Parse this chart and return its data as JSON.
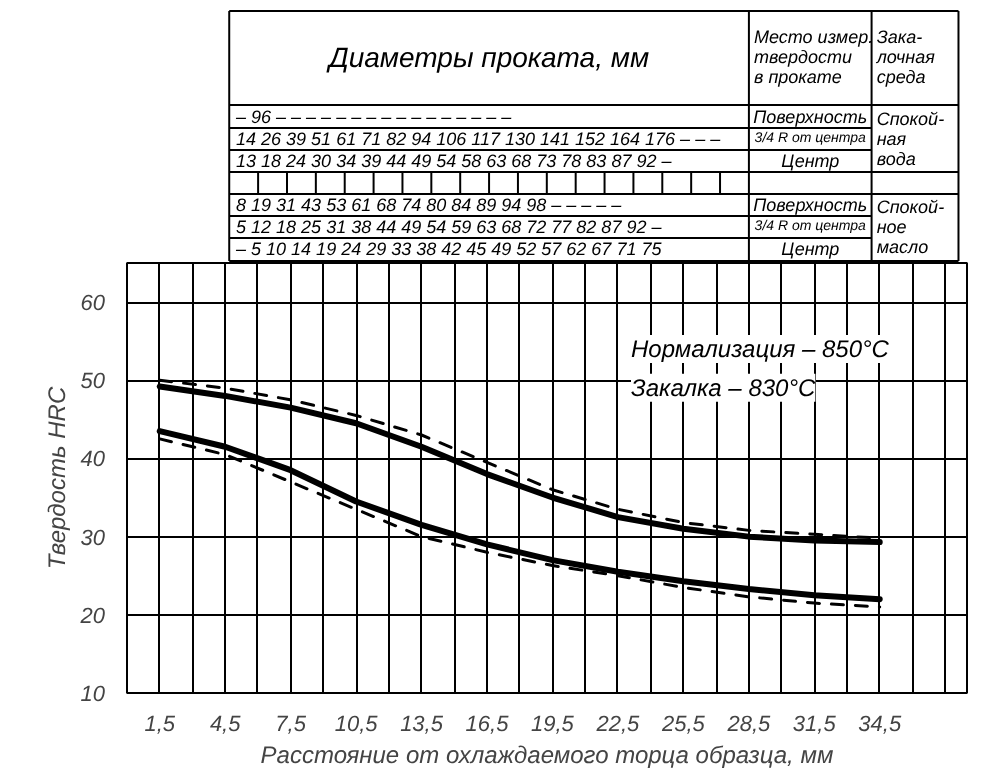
{
  "chart_data": {
    "type": "line",
    "ylabel": "Твердость HRC",
    "xlabel": "Расстояние от охлаждаемого торца образца, мм",
    "x": [
      1.5,
      4.5,
      7.5,
      10.5,
      13.5,
      16.5,
      19.5,
      22.5,
      25.5,
      28.5,
      31.5,
      34.5
    ],
    "series": [
      {
        "color": "#000000",
        "line_style": "solid",
        "values": [
          49.2,
          48,
          46.5,
          44.5,
          41.5,
          38,
          35,
          32.5,
          31,
          30,
          29.5,
          29.3
        ]
      },
      {
        "color": "#000000",
        "line_style": "dashed",
        "values": [
          50,
          49,
          47.5,
          45.5,
          43,
          39.5,
          36,
          33.5,
          31.8,
          30.8,
          30.3,
          29.8
        ]
      },
      {
        "color": "#000000",
        "line_style": "solid",
        "values": [
          43.5,
          41.5,
          38.5,
          34.5,
          31.5,
          29,
          27,
          25.5,
          24.3,
          23.3,
          22.5,
          22
        ]
      },
      {
        "color": "#000000",
        "line_style": "dashed",
        "values": [
          42.5,
          40.5,
          37,
          33.5,
          30,
          28,
          26.3,
          25,
          23.5,
          22.3,
          21.5,
          21
        ]
      }
    ],
    "xlim": [
      0,
      38.5
    ],
    "ylim": [
      10,
      65
    ],
    "xticks": [
      {
        "value": 1.5,
        "label": "1,5"
      },
      {
        "value": 3,
        "label": null
      },
      {
        "value": 4.5,
        "label": "4,5"
      },
      {
        "value": 6,
        "label": null
      },
      {
        "value": 7.5,
        "label": "7,5"
      },
      {
        "value": 9,
        "label": null
      },
      {
        "value": 10.5,
        "label": "10,5"
      },
      {
        "value": 12,
        "label": null
      },
      {
        "value": 13.5,
        "label": "13,5"
      },
      {
        "value": 15,
        "label": null
      },
      {
        "value": 16.5,
        "label": "16,5"
      },
      {
        "value": 18,
        "label": null
      },
      {
        "value": 19.5,
        "label": "19,5"
      },
      {
        "value": 21,
        "label": null
      },
      {
        "value": 22.5,
        "label": "22,5"
      },
      {
        "value": 24,
        "label": null
      },
      {
        "value": 25.5,
        "label": "25,5"
      },
      {
        "value": 27,
        "label": null
      },
      {
        "value": 28.5,
        "label": "28,5"
      },
      {
        "value": 30,
        "label": null
      },
      {
        "value": 31.5,
        "label": "31,5"
      },
      {
        "value": 33,
        "label": null
      },
      {
        "value": 34.5,
        "label": "34,5"
      },
      {
        "value": 36,
        "label": null
      },
      {
        "value": 37.5,
        "label": null
      }
    ],
    "yticks": [
      10,
      20,
      30,
      40,
      50,
      60
    ],
    "grid": true,
    "marker": "none",
    "annotations": [
      "Нормализация – 850°С",
      "Закалка – 830°С",
      "Диаметры проката, мм",
      "Место измер.\nтвердости\nв прокате",
      "Зака-\nлочная\nсреда",
      "– 96 – – – – – – – – – – – – – – – –",
      "14 26 39 51 61 71 82 94 106 117 130 141 152 164 176 – – –",
      "13 18 24 30 34 39 44 49 54 58 63 68 73 78 83 87 92 –",
      "Поверхность",
      "3/4 R от центра",
      "Центр",
      "Спокой-\nная\nвода",
      "8 19 31 43 53 61 68 74 80 84 89 94 98 – – – – –",
      "5 12 18 25 31 38 44 49 54 59 63 68 72 77 82 87 92 –",
      "– 5 10 14 19 24 29 33 38 42 45 49 52 57 62 67 71 75",
      "Поверхность",
      "3/4 R от центра",
      "Центр",
      "Спокой-\nное\nмасло"
    ]
  }
}
